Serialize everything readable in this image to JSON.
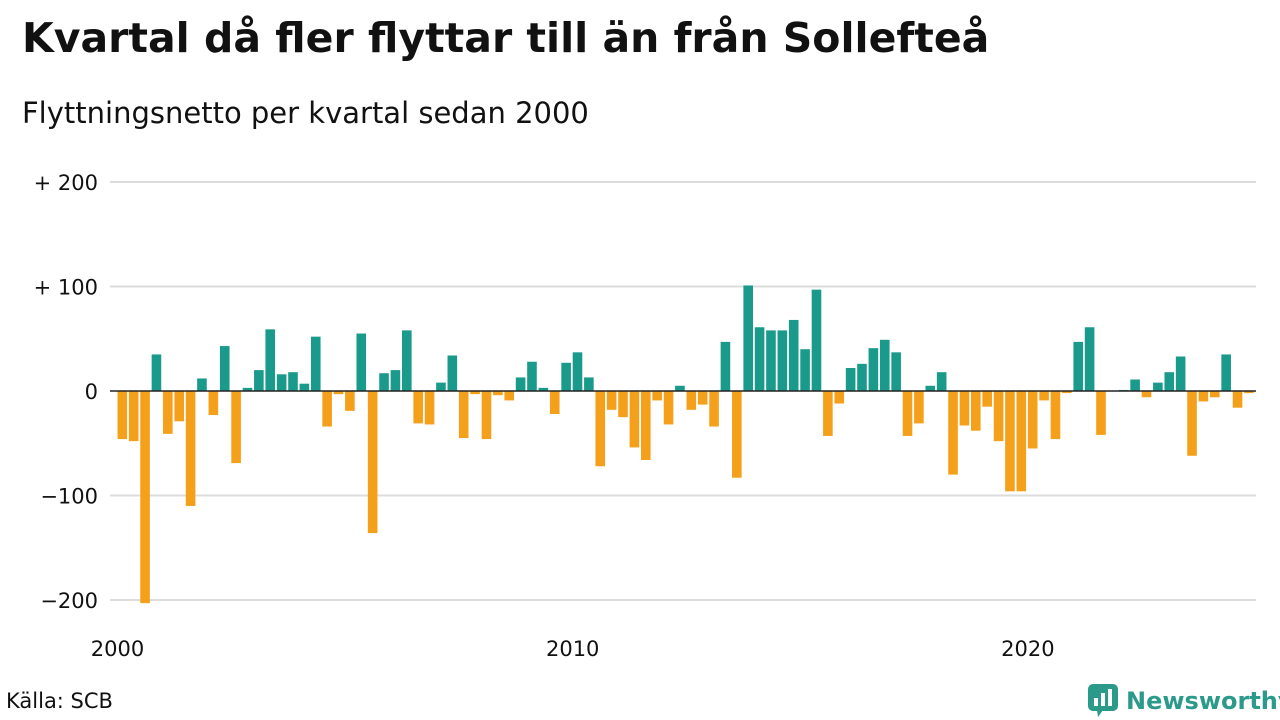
{
  "title": "Kvartal då fler flyttar till än från Sollefteå",
  "subtitle": "Flyttningsnetto per kvartal sedan 2000",
  "source": "Källa: SCB",
  "brand": {
    "name": "Newsworthy",
    "icon": "newsworthy-logo-icon"
  },
  "colors": {
    "positive": "#1a9a8a",
    "negative": "#f5a01b",
    "grid": "#dcdcdc",
    "zero": "#222222"
  },
  "chart_data": {
    "type": "bar",
    "title": "Kvartal då fler flyttar till än från Sollefteå",
    "subtitle": "Flyttningsnetto per kvartal sedan 2000",
    "xlabel": "",
    "ylabel": "",
    "ylim": [
      -215,
      210
    ],
    "y_ticks": [
      {
        "value": 200,
        "label": "+ 200"
      },
      {
        "value": 100,
        "label": "+ 100"
      },
      {
        "value": 0,
        "label": "0"
      },
      {
        "value": -100,
        "label": "−100"
      },
      {
        "value": -200,
        "label": "−200"
      }
    ],
    "x_ticks": [
      {
        "value": 2000,
        "label": "2000"
      },
      {
        "value": 2010,
        "label": "2010"
      },
      {
        "value": 2020,
        "label": "2020"
      }
    ],
    "grid": true,
    "start_year": 2000,
    "values": [
      -46,
      -48,
      -203,
      35,
      -41,
      -29,
      -110,
      12,
      -23,
      43,
      -69,
      3,
      20,
      59,
      16,
      18,
      7,
      52,
      -34,
      -3,
      -19,
      55,
      -136,
      17,
      20,
      58,
      -31,
      -32,
      8,
      34,
      -45,
      -3,
      -46,
      -4,
      -9,
      13,
      28,
      3,
      -22,
      27,
      37,
      13,
      -72,
      -18,
      -25,
      -54,
      -66,
      -9,
      -32,
      5,
      -18,
      -13,
      -34,
      47,
      -83,
      101,
      61,
      58,
      58,
      68,
      40,
      97,
      -43,
      -12,
      22,
      26,
      41,
      49,
      37,
      -43,
      -31,
      5,
      18,
      -80,
      -33,
      -38,
      -15,
      -48,
      -96,
      -96,
      -55,
      -9,
      -46,
      -2,
      47,
      61,
      -42,
      0,
      1,
      11,
      -6,
      8,
      18,
      33,
      -62,
      -10,
      -6,
      35,
      -16,
      -2
    ]
  }
}
